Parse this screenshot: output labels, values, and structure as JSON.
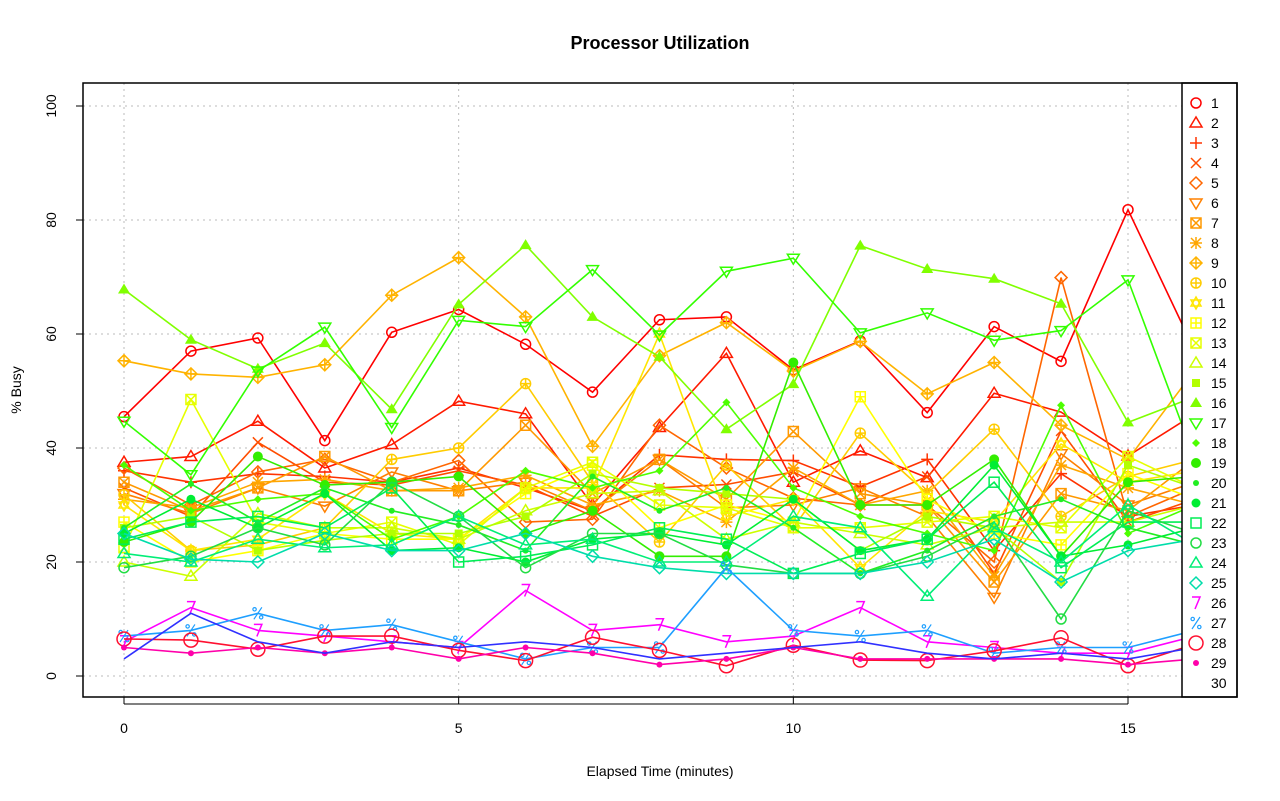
{
  "chart_data": {
    "type": "line",
    "title": "Processor Utilization",
    "xlabel": "Elapsed Time (minutes)",
    "ylabel": "% Busy",
    "xlim": [
      -0.6,
      16.6
    ],
    "ylim": [
      -4,
      104
    ],
    "xticks": [
      0,
      5,
      10,
      15
    ],
    "yticks": [
      0,
      20,
      40,
      60,
      80,
      100
    ],
    "grid": true,
    "legend_position": "right",
    "x": [
      0,
      1,
      2,
      3,
      4,
      5,
      6,
      7,
      8,
      9,
      10,
      11,
      12,
      13,
      14,
      15,
      16
    ],
    "series": [
      {
        "name": "1",
        "color": "#ff0000",
        "marker": "circle",
        "values": [
          45.5,
          57,
          59.3,
          41.3,
          60.3,
          64.3,
          58.2,
          49.8,
          62.5,
          63,
          53.7,
          58.8,
          46.2,
          61.3,
          55.2,
          81.8,
          57
        ]
      },
      {
        "name": "2",
        "color": "#ff1a00",
        "marker": "triangle",
        "values": [
          37.5,
          38.5,
          44.7,
          36.5,
          40.6,
          48.2,
          46,
          30,
          43.6,
          56.6,
          34,
          39.5,
          34.8,
          49.6,
          46.3,
          38.6,
          46
        ]
      },
      {
        "name": "3",
        "color": "#ff3300",
        "marker": "plus",
        "values": [
          36,
          34,
          35.5,
          35,
          34,
          36.5,
          33,
          29,
          38.8,
          38,
          37.8,
          33.2,
          38,
          22,
          35.5,
          28,
          30
        ]
      },
      {
        "name": "4",
        "color": "#ff4d00",
        "marker": "cross",
        "values": [
          33,
          28,
          41,
          34,
          33.5,
          36,
          33.5,
          28,
          33,
          33.6,
          35.8,
          30,
          35,
          18,
          43,
          27,
          31
        ]
      },
      {
        "name": "5",
        "color": "#ff6600",
        "marker": "diamond",
        "values": [
          36.5,
          30,
          35.8,
          38,
          34,
          37.8,
          27,
          27.5,
          44,
          36.5,
          31.2,
          30,
          30,
          20,
          69.9,
          28,
          33
        ]
      },
      {
        "name": "6",
        "color": "#ff8000",
        "marker": "down-triangle",
        "values": [
          32,
          28.5,
          33,
          29.8,
          35.8,
          32.5,
          34,
          29,
          38,
          29.5,
          30,
          33,
          28,
          13.8,
          39,
          30,
          34
        ]
      },
      {
        "name": "7",
        "color": "#ff9900",
        "marker": "square-x",
        "values": [
          34,
          29,
          33,
          38.5,
          32.5,
          32.5,
          44,
          32,
          38,
          31,
          42.9,
          32,
          30,
          16.5,
          32,
          29,
          38
        ]
      },
      {
        "name": "8",
        "color": "#ffa600",
        "marker": "star",
        "values": [
          31,
          29.5,
          34,
          34.5,
          32.5,
          33,
          35.2,
          30,
          32.5,
          27,
          36.5,
          30,
          32.5,
          17.5,
          37,
          33,
          30
        ]
      },
      {
        "name": "9",
        "color": "#ffb300",
        "marker": "diamond-plus",
        "values": [
          55.3,
          53,
          52.4,
          54.6,
          66.8,
          73.4,
          63,
          40.3,
          56.2,
          62,
          53.5,
          58.7,
          49.5,
          55,
          44,
          38,
          53.7
        ]
      },
      {
        "name": "10",
        "color": "#ffcc00",
        "marker": "circle-plus",
        "values": [
          31.8,
          22,
          23,
          26,
          38,
          40,
          51.3,
          34,
          23.5,
          37,
          26,
          42.6,
          32,
          43.3,
          28,
          35,
          38
        ]
      },
      {
        "name": "11",
        "color": "#ffe600",
        "marker": "star-of-david",
        "values": [
          30,
          22,
          24,
          32,
          25,
          24,
          33,
          33,
          60,
          28,
          31,
          19,
          29,
          27,
          40.7,
          34,
          36
        ]
      },
      {
        "name": "12",
        "color": "#ffff00",
        "marker": "square-plus",
        "values": [
          27,
          20,
          22,
          25,
          24,
          24,
          32,
          37,
          26,
          30,
          27,
          49,
          31,
          25,
          23,
          35.5,
          31
        ]
      },
      {
        "name": "13",
        "color": "#e6ff00",
        "marker": "square-x",
        "values": [
          22.5,
          48.5,
          27,
          25,
          27,
          23,
          33,
          37.5,
          30,
          29.5,
          26,
          26,
          27,
          28,
          26,
          38.5,
          33
        ]
      },
      {
        "name": "14",
        "color": "#ccff00",
        "marker": "square-triangle",
        "values": [
          20,
          17.5,
          28.5,
          26,
          26,
          24,
          29,
          32,
          32.5,
          24,
          27,
          25,
          23,
          26,
          27,
          27,
          30
        ]
      },
      {
        "name": "15",
        "color": "#b3ff00",
        "marker": "filled-square",
        "values": [
          26,
          28,
          22,
          23.8,
          25,
          25,
          28,
          35.5,
          33,
          32,
          31,
          22,
          28,
          26,
          16.5,
          37,
          33
        ]
      },
      {
        "name": "16",
        "color": "#80ff00",
        "marker": "filled-triangle",
        "values": [
          67.8,
          59,
          53.9,
          58.4,
          46.8,
          65.2,
          75.6,
          63,
          56,
          43.3,
          51.2,
          75.5,
          71.4,
          69.7,
          65.3,
          44.5,
          49
        ]
      },
      {
        "name": "17",
        "color": "#33ff00",
        "marker": "down-triangle",
        "values": [
          44.7,
          35.3,
          53.5,
          61.2,
          43.6,
          62.4,
          61.3,
          71.3,
          59.8,
          71,
          73.3,
          60.2,
          63.7,
          58.9,
          60.6,
          69.5,
          38
        ]
      },
      {
        "name": "18",
        "color": "#4dff00",
        "marker": "filled-diamond",
        "values": [
          37,
          29,
          31,
          32,
          24,
          28,
          36,
          33,
          36,
          48,
          33,
          28,
          25,
          22,
          47.5,
          25,
          30
        ]
      },
      {
        "name": "19",
        "color": "#33ee00",
        "marker": "filled-circle",
        "values": [
          23.5,
          27,
          38.5,
          33.5,
          34,
          35,
          25,
          29,
          21,
          21,
          55,
          30,
          30,
          38,
          21,
          34,
          35
        ]
      },
      {
        "name": "20",
        "color": "#22ee22",
        "marker": "small-dot",
        "values": [
          26,
          33.7,
          27,
          33,
          29,
          26.5,
          22,
          35,
          29,
          33,
          26,
          18,
          22,
          28,
          31,
          26,
          23
        ]
      },
      {
        "name": "21",
        "color": "#00ee33",
        "marker": "big-dot",
        "values": [
          25,
          31,
          26,
          32,
          22,
          22.5,
          20,
          24,
          25,
          23,
          31,
          22,
          24,
          37,
          21,
          23,
          26
        ]
      },
      {
        "name": "22",
        "color": "#00ee55",
        "marker": "square",
        "values": [
          24,
          27,
          28,
          26,
          33,
          20,
          21,
          23,
          26,
          24,
          18,
          21.5,
          24,
          34,
          19,
          27,
          27
        ]
      },
      {
        "name": "23",
        "color": "#22dd44",
        "marker": "circle",
        "values": [
          19,
          21,
          26,
          23,
          34,
          28,
          19,
          25,
          25,
          19.5,
          18,
          18,
          21,
          27,
          10,
          29,
          25
        ]
      },
      {
        "name": "24",
        "color": "#00ee77",
        "marker": "triangle",
        "values": [
          21.5,
          20,
          24,
          22.5,
          23,
          28,
          23,
          24,
          20,
          20,
          28,
          26,
          14,
          26,
          20,
          30,
          23
        ]
      },
      {
        "name": "25",
        "color": "#00ddaa",
        "marker": "diamond",
        "values": [
          25,
          20.5,
          20,
          25,
          22,
          22,
          25,
          21,
          19,
          18,
          18,
          18,
          20,
          24,
          16.5,
          22,
          24
        ]
      },
      {
        "name": "26",
        "color": "#ff00ff",
        "marker": "7",
        "values": [
          6,
          12,
          8,
          7,
          6,
          5,
          15,
          8,
          9,
          6,
          7,
          12,
          6,
          5,
          4,
          4,
          7
        ]
      },
      {
        "name": "27",
        "color": "#1e9fff",
        "marker": "%",
        "values": [
          7,
          8,
          11,
          8,
          9,
          6,
          3,
          5,
          5,
          19,
          8,
          7,
          8,
          4,
          5,
          5,
          8
        ]
      },
      {
        "name": "28",
        "color": "#ff1030",
        "marker": "big-circle",
        "values": [
          6.5,
          6.3,
          4.7,
          7,
          7,
          4.5,
          2.7,
          6.8,
          4.5,
          1.8,
          5.4,
          2.8,
          2.7,
          4.4,
          6.7,
          1.8,
          5.6
        ]
      },
      {
        "name": "29",
        "color": "#ff00aa",
        "marker": "dot",
        "values": [
          5,
          4,
          5,
          4,
          5,
          3,
          5,
          4,
          2,
          3,
          5,
          3,
          3,
          3,
          3,
          2,
          3
        ]
      },
      {
        "name": "30",
        "color": "#3030ff",
        "marker": "none",
        "values": [
          3,
          11,
          6,
          4,
          6,
          5,
          6,
          5,
          3,
          4,
          5,
          6,
          4,
          3,
          4,
          3,
          5
        ]
      }
    ]
  }
}
